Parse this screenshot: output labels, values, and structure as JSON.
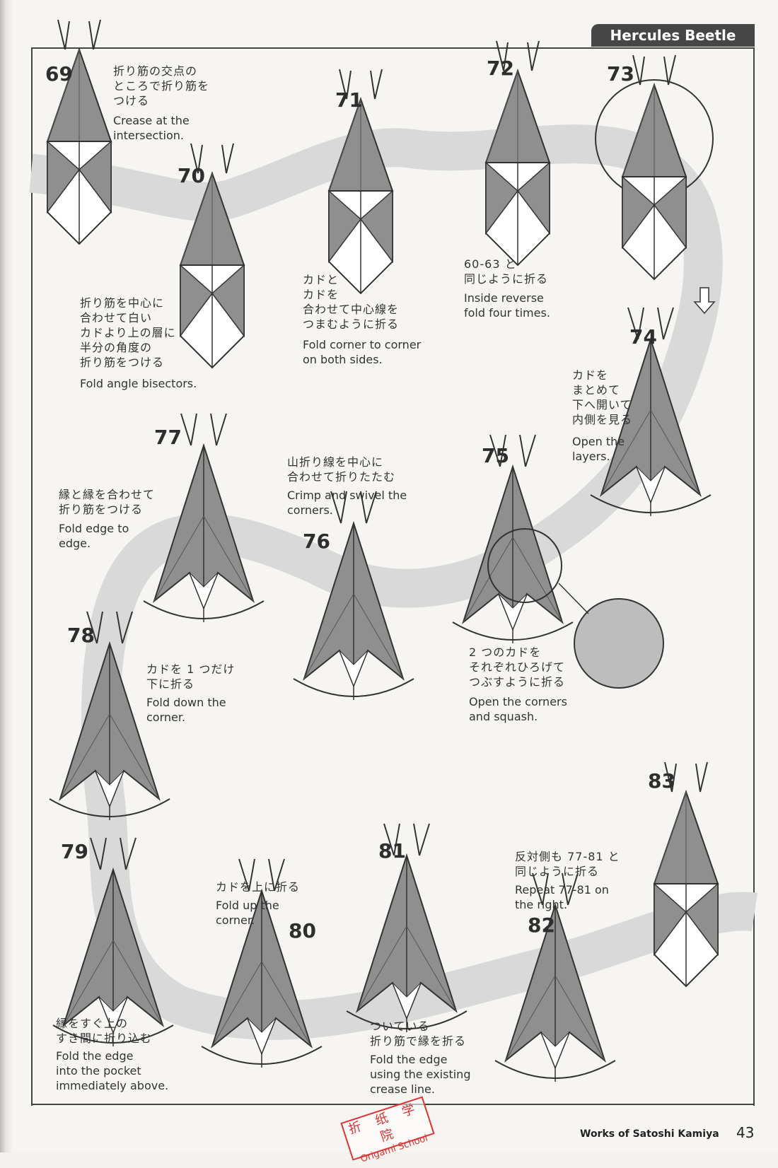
{
  "header": {
    "title": "Hercules Beetle"
  },
  "steps": [
    {
      "num": "69",
      "jp": "折り筋の交点の\nところで折り筋を\nつける",
      "en": "Crease at the\nintersection."
    },
    {
      "num": "70",
      "jp": "折り筋を中心に\n合わせて白い\nカドより上の層に\n半分の角度の\n折り筋をつける",
      "en": "Fold angle bisectors."
    },
    {
      "num": "71",
      "jp": "カドと\nカドを\n合わせて中心線を\nつまむように折る",
      "en": "Fold corner to corner\non both sides."
    },
    {
      "num": "72",
      "jp": "60-63 と\n同じように折る",
      "en": "Inside reverse\nfold four times."
    },
    {
      "num": "73",
      "jp": "",
      "en": ""
    },
    {
      "num": "74",
      "jp": "カドを\nまとめて\n下へ開いて\n内側を見る",
      "en": "Open the\nlayers."
    },
    {
      "num": "75",
      "jp": "2 つのカドを\nそれぞれひろげて\nつぶすように折る",
      "en": "Open the corners\nand squash."
    },
    {
      "num": "76",
      "jp": "山折り線を中心に\n合わせて折りたたむ",
      "en": "Crimp and swivel the\ncorners."
    },
    {
      "num": "77",
      "jp": "縁と縁を合わせて\n折り筋をつける",
      "en": "Fold edge to\nedge."
    },
    {
      "num": "78",
      "jp": "カドを 1 つだけ\n下に折る",
      "en": "Fold down the\ncorner."
    },
    {
      "num": "79",
      "jp": "縁をすぐ上の\nすき間に折り込む",
      "en": "Fold the edge\ninto the pocket\nimmediately above."
    },
    {
      "num": "80",
      "jp": "カドを上に折る",
      "en": "Fold up the\ncorner."
    },
    {
      "num": "81",
      "jp": "ついている\n折り筋で縁を折る",
      "en": "Fold the edge\nusing the existing\ncrease line."
    },
    {
      "num": "82",
      "jp": "反対側も 77-81 と\n同じように折る",
      "en": "Repeat 77-81 on\nthe right."
    },
    {
      "num": "83",
      "jp": "",
      "en": ""
    }
  ],
  "footer": {
    "credit": "Works of Satoshi Kamiya",
    "page_number": "43"
  },
  "stamp": {
    "line1": "折 纸 学 院",
    "line2": "Origami School"
  },
  "colors": {
    "paper_gray": "#8f8f8f",
    "paper_white": "#ffffff",
    "path_band": "#d9d9d9",
    "ink": "#333333",
    "stamp": "#dd3333"
  }
}
